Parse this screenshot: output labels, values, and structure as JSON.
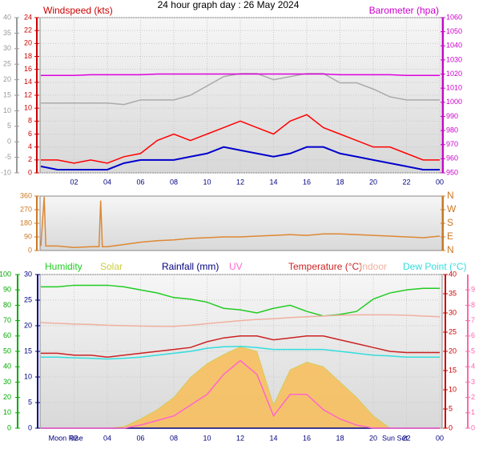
{
  "title": "24 hour graph day : 26 May 2024",
  "chart_data": [
    {
      "type": "line",
      "labels": [
        {
          "text": "Windspeed (kts)",
          "color": "#cc0000"
        },
        {
          "text": "Barometer (hpa)",
          "color": "#cc00cc"
        }
      ],
      "xlim": [
        0,
        24
      ],
      "xticks": [
        {
          "value": 2,
          "label": "02"
        },
        {
          "value": 4,
          "label": "04"
        },
        {
          "value": 6,
          "label": "06"
        },
        {
          "value": 8,
          "label": "08"
        },
        10,
        12,
        14,
        16,
        18,
        20,
        22,
        {
          "value": 24,
          "label": "00"
        }
      ],
      "grid": true,
      "axes": {
        "y": {
          "lim": [
            0,
            24
          ],
          "ticks": [
            0,
            2,
            4,
            6,
            8,
            10,
            12,
            14,
            16,
            18,
            20,
            22,
            24
          ],
          "color": "#cc0000",
          "grid": true
        },
        "y3": {
          "lim": [
            -10,
            40
          ],
          "ticks": [
            -10,
            -5,
            0,
            5,
            10,
            15,
            20,
            25,
            30,
            35,
            40
          ],
          "color": "#999999"
        },
        "y2": {
          "lim": [
            950,
            1060
          ],
          "ticks": [
            950,
            960,
            970,
            980,
            990,
            1000,
            1010,
            1020,
            1030,
            1040,
            1050,
            1060
          ],
          "color": "#cc00cc"
        }
      },
      "x": [
        0,
        1,
        2,
        3,
        4,
        5,
        6,
        7,
        8,
        9,
        10,
        11,
        12,
        13,
        14,
        15,
        16,
        17,
        18,
        19,
        20,
        21,
        22,
        23,
        24
      ],
      "series": [
        {
          "color": "#aaaaaa",
          "axis": "y3",
          "values": [
            12.5,
            12.5,
            12.5,
            12.5,
            12.5,
            12,
            13.5,
            13.5,
            13.5,
            15,
            18,
            21,
            22,
            22,
            20,
            21,
            22,
            22,
            19,
            19,
            17,
            14.5,
            13.5,
            13.5,
            13.5
          ]
        },
        {
          "color": "#dd00dd",
          "axis": "y2",
          "values": [
            1019,
            1019,
            1019,
            1019.5,
            1019.5,
            1019.5,
            1019.5,
            1020,
            1020,
            1020,
            1020,
            1020,
            1020,
            1020,
            1020,
            1020,
            1020,
            1020,
            1019.5,
            1019.5,
            1019.5,
            1019.5,
            1019,
            1019,
            1019
          ]
        },
        {
          "color": "#ff0000",
          "axis": "y",
          "values": [
            2,
            2,
            1.5,
            2,
            1.5,
            2.5,
            3,
            5,
            6,
            5,
            6,
            7,
            8,
            7,
            6,
            8,
            9,
            7,
            6,
            5,
            4,
            4,
            3,
            2,
            2
          ]
        },
        {
          "color": "#0000cc",
          "axis": "y",
          "values": [
            1,
            0.5,
            0.5,
            0.5,
            0.5,
            1.5,
            2,
            2,
            2,
            2.5,
            3,
            4,
            3.5,
            3,
            2.5,
            3,
            4,
            4,
            3,
            2.5,
            2,
            1.5,
            1,
            0.5,
            0.5
          ]
        }
      ]
    },
    {
      "type": "line",
      "xlim": [
        0,
        24
      ],
      "axes": {
        "y": {
          "lim": [
            0,
            360
          ],
          "ticks": [
            0,
            90,
            180,
            270,
            360
          ],
          "color": "#cc7722"
        },
        "y2": {
          "lim": [
            0,
            360
          ],
          "ticks": [
            {
              "value": 0,
              "label": "N"
            },
            {
              "value": 90,
              "label": "E"
            },
            {
              "value": 180,
              "label": "S"
            },
            {
              "value": 270,
              "label": "W"
            },
            {
              "value": 360,
              "label": "N"
            }
          ],
          "color": "#cc7722"
        }
      },
      "series": [
        {
          "color": "#dd8833",
          "axis": "y",
          "x": [
            0,
            0.2,
            0.3,
            1,
            2,
            3,
            3.5,
            3.6,
            3.7,
            4,
            5,
            6,
            7,
            8,
            9,
            10,
            11,
            12,
            13,
            14,
            15,
            16,
            17,
            18,
            19,
            20,
            21,
            22,
            23,
            24
          ],
          "values": [
            30,
            355,
            30,
            30,
            20,
            25,
            25,
            330,
            25,
            25,
            40,
            55,
            65,
            70,
            80,
            85,
            90,
            90,
            95,
            100,
            105,
            100,
            110,
            110,
            105,
            100,
            95,
            90,
            85,
            95
          ]
        }
      ]
    },
    {
      "type": "line",
      "xlim": [
        0,
        24
      ],
      "xticks": [
        {
          "value": 2,
          "label": "02"
        },
        {
          "value": 4,
          "label": "04"
        },
        {
          "value": 6,
          "label": "06"
        },
        {
          "value": 8,
          "label": "08"
        },
        10,
        12,
        14,
        16,
        18,
        20,
        22,
        {
          "value": 24,
          "label": "00"
        }
      ],
      "grid": true,
      "axes": {
        "y3": {
          "lim": [
            0,
            100
          ],
          "ticks": [
            0,
            10,
            20,
            30,
            40,
            50,
            60,
            70,
            80,
            90,
            100
          ],
          "color": "#00aa00"
        },
        "y": {
          "lim": [
            0,
            30
          ],
          "ticks": [
            0,
            5,
            10,
            15,
            20,
            25,
            30
          ],
          "color": "#000080",
          "grid": true
        },
        "y2": {
          "lim": [
            0,
            40
          ],
          "ticks": [
            0,
            5,
            10,
            15,
            20,
            25,
            30,
            35,
            40
          ],
          "color": "#cc0000"
        },
        "y4": {
          "lim": [
            0,
            10
          ],
          "ticks": [
            0,
            1,
            2,
            3,
            4,
            5,
            6,
            7,
            8,
            9
          ],
          "color": "#ff66aa"
        },
        "y5": {
          "lim": [
            0,
            1000
          ]
        }
      },
      "x": [
        0,
        1,
        2,
        3,
        4,
        5,
        6,
        7,
        8,
        9,
        10,
        11,
        12,
        13,
        14,
        15,
        16,
        17,
        18,
        19,
        20,
        21,
        22,
        23,
        24
      ],
      "series": [
        {
          "name": "Humidity",
          "color": "#22cc22",
          "axis": "y3",
          "values": [
            92,
            92,
            93,
            93,
            93,
            92,
            90,
            88,
            85,
            84,
            82,
            78,
            77,
            75,
            78,
            80,
            76,
            73,
            74,
            76,
            84,
            88,
            90,
            91,
            91
          ]
        },
        {
          "name": "Solar",
          "color": "#cccc44",
          "fill": "#f8c060",
          "axis": "y5",
          "values": [
            0,
            0,
            0,
            0,
            0,
            10,
            60,
            120,
            200,
            330,
            420,
            480,
            530,
            500,
            150,
            380,
            430,
            400,
            300,
            200,
            80,
            0,
            0,
            0,
            0
          ]
        },
        {
          "name": "Rainfall (mm)",
          "color": "#000080",
          "axis": "y",
          "values": [
            0,
            0,
            0,
            0,
            0,
            0,
            0,
            0,
            0,
            0,
            0,
            0,
            0,
            0,
            0,
            0,
            0,
            0,
            0,
            0,
            0,
            0,
            0,
            0,
            0
          ]
        },
        {
          "name": "UV",
          "color": "#ff66cc",
          "axis": "y4",
          "values": [
            0,
            0,
            0,
            0,
            0,
            0,
            0.2,
            0.5,
            0.8,
            1.5,
            2.2,
            3.5,
            4.4,
            3.5,
            0.8,
            2.2,
            2.2,
            1.2,
            0.6,
            0.2,
            0,
            0,
            0,
            0,
            0
          ]
        },
        {
          "name": "Temperature (°C)",
          "color": "#cc2222",
          "axis": "y2",
          "values": [
            19.5,
            19.5,
            19,
            19,
            18.5,
            19,
            19.5,
            20,
            20.5,
            21,
            22.5,
            23.5,
            24,
            24,
            23,
            23.5,
            24,
            24,
            23,
            22,
            21,
            20,
            19.7,
            19.7,
            19.7
          ]
        },
        {
          "name": "Indoor",
          "color": "#f0b0a0",
          "axis": "y2",
          "values": [
            27.5,
            27.3,
            27.1,
            27,
            26.8,
            26.7,
            26.6,
            26.5,
            26.5,
            26.8,
            27.2,
            27.6,
            28,
            28.3,
            28.5,
            28.8,
            29,
            29.2,
            29.4,
            29.5,
            29.5,
            29.5,
            29.4,
            29.2,
            29
          ]
        },
        {
          "name": "Dew Point (°C)",
          "color": "#33dddd",
          "axis": "y2",
          "values": [
            18.5,
            18.5,
            18.3,
            18.2,
            18,
            18.2,
            18.5,
            19,
            19.5,
            20,
            20.8,
            21.2,
            21.3,
            21,
            20.5,
            20.5,
            20.5,
            20.5,
            20,
            19.5,
            19,
            18.8,
            18.5,
            18.5,
            18.5
          ]
        }
      ],
      "annotations": [
        {
          "text": "Moon Rise",
          "x": 1.5
        },
        {
          "text": "Sun Set",
          "x": 21.3
        }
      ]
    }
  ]
}
